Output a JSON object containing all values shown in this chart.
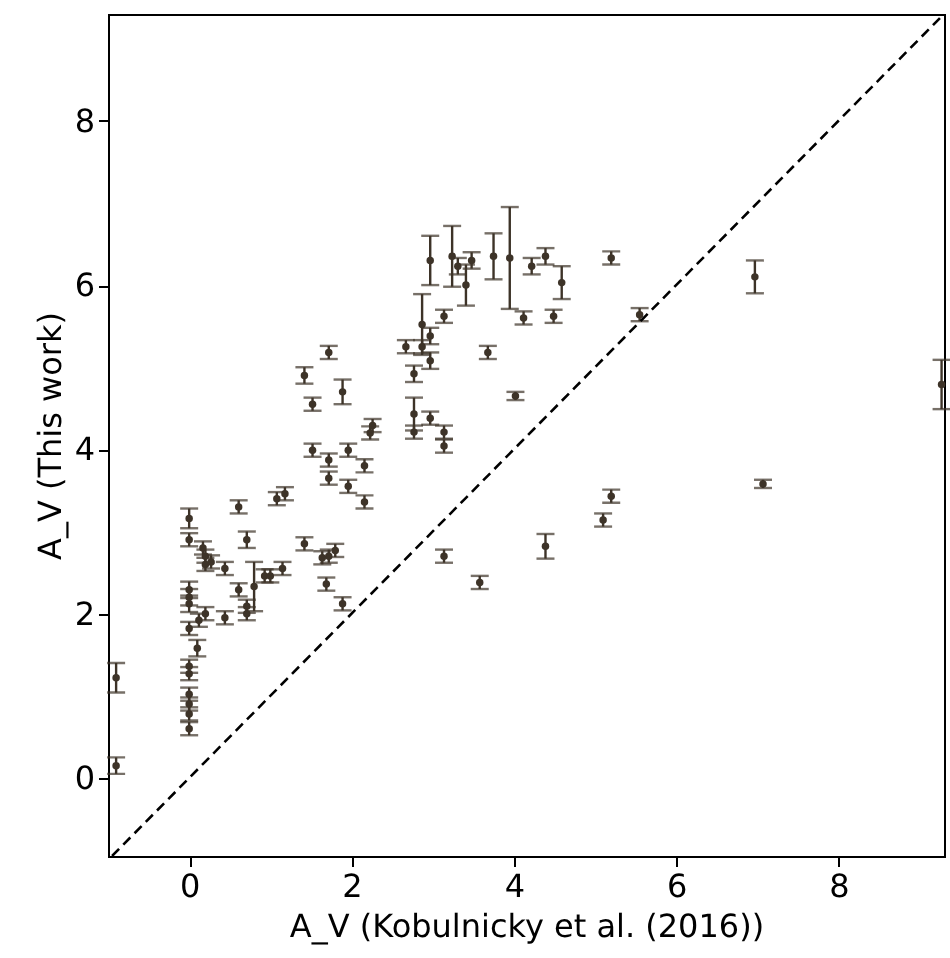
{
  "chart_data": {
    "type": "scatter",
    "xlabel": "A_V (Kobulnicky et al. (2016))",
    "ylabel": "A_V (This work)",
    "xlim": [
      -1,
      9.3
    ],
    "ylim": [
      -0.95,
      9.3
    ],
    "xticks": [
      0,
      2,
      4,
      6,
      8
    ],
    "yticks": [
      0,
      2,
      4,
      6,
      8
    ],
    "grid": false,
    "series": [
      {
        "type": "scatter",
        "marker": "circle",
        "color": "#3d3328",
        "x": [
          -0.9,
          -0.9,
          0,
          0,
          0.17,
          0.2,
          0.2,
          0.27,
          0.44,
          0.61,
          0.71,
          0.61,
          0.8,
          0.71,
          0.71,
          0.44,
          0.2,
          0.12,
          0,
          0.1,
          0,
          0,
          0,
          0,
          0,
          0,
          0,
          0,
          0,
          0.93,
          1.0,
          1.15,
          1.08,
          1.18,
          1.42,
          1.64,
          1.72,
          1.8,
          1.69,
          1.89,
          1.42,
          1.72,
          1.52,
          1.89,
          1.52,
          1.72,
          1.72,
          1.96,
          1.96,
          2.16,
          2.16,
          2.23,
          2.97,
          3.24,
          3.31,
          3.41,
          3.48,
          3.75,
          3.95,
          4.22,
          4.39,
          4.59,
          4.12,
          4.49,
          3.14,
          3.68,
          4.02,
          2.87,
          2.97,
          2.67,
          2.87,
          2.97,
          2.77,
          2.77,
          2.97,
          2.77,
          3.14,
          3.14,
          2.26,
          4.39,
          3.14,
          3.58,
          5.2,
          5.55,
          6.97,
          9.27,
          5.2,
          5.1,
          7.07
        ],
        "values": [
          1.22,
          0.15,
          3.16,
          2.9,
          2.8,
          2.7,
          2.6,
          2.63,
          2.55,
          3.3,
          2.9,
          2.29,
          2.33,
          2.09,
          2.0,
          1.95,
          2.0,
          1.92,
          1.82,
          1.58,
          1.36,
          1.27,
          1.02,
          0.9,
          0.78,
          0.6,
          2.29,
          2.2,
          2.12,
          2.46,
          2.46,
          2.55,
          3.4,
          3.46,
          2.85,
          2.68,
          2.7,
          2.77,
          2.36,
          2.12,
          4.9,
          5.18,
          4.55,
          4.7,
          3.99,
          3.87,
          3.65,
          3.99,
          3.55,
          3.8,
          3.36,
          4.2,
          6.3,
          6.35,
          6.23,
          6.0,
          6.3,
          6.35,
          6.33,
          6.23,
          6.35,
          6.03,
          5.6,
          5.62,
          5.62,
          5.18,
          4.65,
          5.52,
          5.38,
          5.25,
          5.25,
          5.08,
          4.92,
          4.43,
          4.38,
          4.21,
          4.21,
          4.04,
          4.29,
          2.82,
          2.7,
          2.38,
          6.33,
          5.64,
          6.1,
          4.79,
          3.43,
          3.14,
          3.58
        ],
        "errors": [
          0.18,
          0.1,
          0.12,
          0.08,
          0.08,
          0.08,
          0.08,
          0.08,
          0.08,
          0.08,
          0.1,
          0.08,
          0.3,
          0.08,
          0.08,
          0.08,
          0.08,
          0.08,
          0.08,
          0.1,
          0.08,
          0.08,
          0.08,
          0.08,
          0.08,
          0.08,
          0.1,
          0.1,
          0.1,
          0.08,
          0.08,
          0.08,
          0.08,
          0.08,
          0.08,
          0.08,
          0.08,
          0.08,
          0.08,
          0.08,
          0.1,
          0.08,
          0.08,
          0.15,
          0.08,
          0.08,
          0.08,
          0.08,
          0.08,
          0.08,
          0.08,
          0.08,
          0.3,
          0.37,
          0.1,
          0.25,
          0.1,
          0.28,
          0.62,
          0.1,
          0.1,
          0.2,
          0.08,
          0.08,
          0.08,
          0.08,
          0.05,
          0.37,
          0.1,
          0.08,
          0.08,
          0.1,
          0.1,
          0.2,
          0.08,
          0.08,
          0.08,
          0.08,
          0.08,
          0.15,
          0.08,
          0.08,
          0.08,
          0.08,
          0.2,
          0.3,
          0.08,
          0.08,
          0.05
        ]
      },
      {
        "type": "line",
        "line_style": "dashed",
        "color": "#000000",
        "x": [
          -0.95,
          9.25
        ],
        "values": [
          -0.95,
          9.25
        ]
      }
    ]
  }
}
